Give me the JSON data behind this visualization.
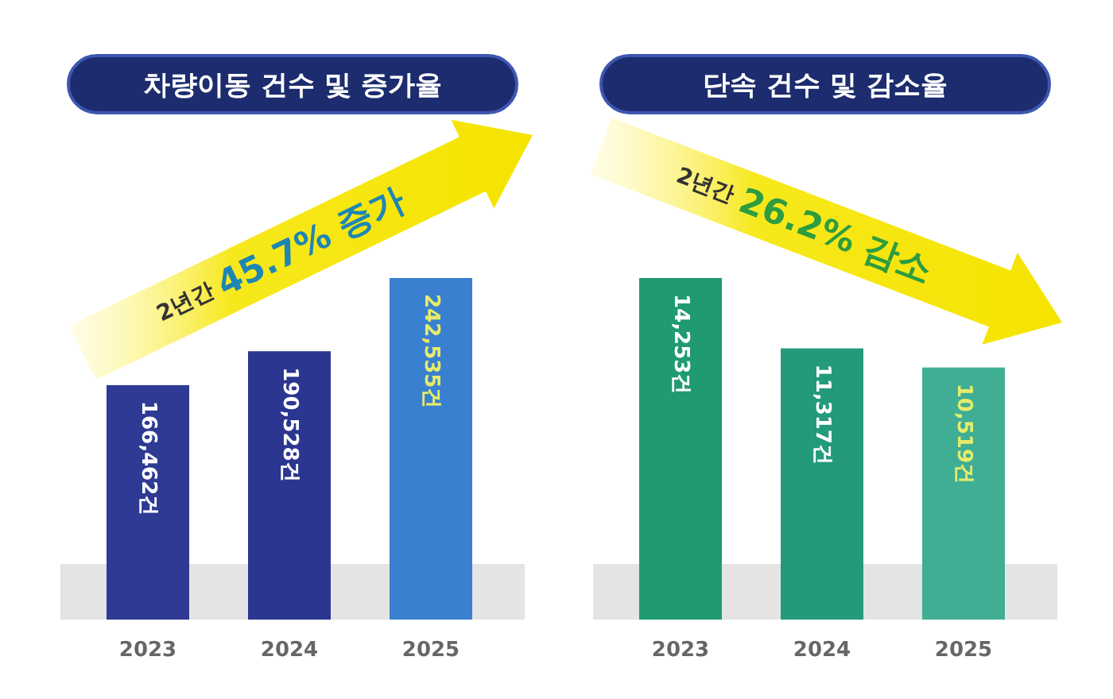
{
  "chart_data": [
    {
      "type": "bar",
      "title": "차량이동 건수 및 증가율",
      "categories": [
        "2023",
        "2024",
        "2025"
      ],
      "values": [
        166462,
        190528,
        242535
      ],
      "colors": [
        "#2e3a93",
        "#2a3690",
        "#3a80d0"
      ],
      "value_labels": [
        "166,462건",
        "190,528건",
        "242,535건"
      ],
      "annotations": [
        "2년간 **45.7% 증가**"
      ]
    },
    {
      "type": "bar",
      "title": "단속 건수 및 감소율",
      "categories": [
        "2023",
        "2024",
        "2025"
      ],
      "values": [
        14253,
        11317,
        10519
      ],
      "colors": [
        "#1f9a72",
        "#239a7c",
        "#3fae95"
      ],
      "value_labels": [
        "14,253건",
        "11,317건",
        "10,519건"
      ],
      "annotations": [
        "2년간 **26.2% 감소**"
      ]
    }
  ]
}
